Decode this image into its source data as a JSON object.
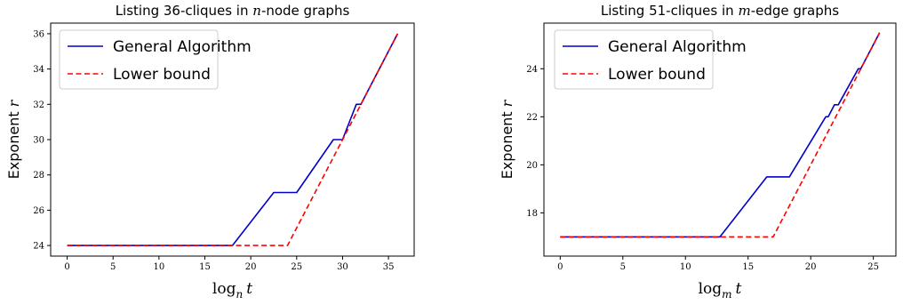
{
  "chart_data": [
    {
      "type": "line",
      "title": {
        "prefix": "Listing 36-cliques in ",
        "math": "n",
        "suffix": "-node graphs"
      },
      "xlabel": {
        "base": "log",
        "sub": "n",
        "var": "t"
      },
      "ylabel": {
        "text": "Exponent ",
        "math": "r"
      },
      "xlim": [
        -1.8,
        37.8
      ],
      "ylim": [
        23.4,
        36.6
      ],
      "xticks": [
        0,
        5,
        10,
        15,
        20,
        25,
        30,
        35
      ],
      "yticks": [
        24,
        26,
        28,
        30,
        32,
        34,
        36
      ],
      "grid": false,
      "legend": "top-left",
      "series": [
        {
          "name": "General Algorithm",
          "color": "#0000cc",
          "dash": "solid",
          "x": [
            0,
            18,
            22.5,
            25,
            29,
            30,
            31.5,
            32,
            36
          ],
          "y": [
            24,
            24,
            27,
            27,
            30,
            30,
            32,
            32,
            36
          ]
        },
        {
          "name": "Lower bound",
          "color": "#ff0000",
          "dash": "dashed",
          "x": [
            0,
            24,
            36
          ],
          "y": [
            24,
            24,
            36
          ]
        }
      ]
    },
    {
      "type": "line",
      "title": {
        "prefix": "Listing 51-cliques in ",
        "math": "m",
        "suffix": "-edge graphs"
      },
      "xlabel": {
        "base": "log",
        "sub": "m",
        "var": "t"
      },
      "ylabel": {
        "text": "Exponent ",
        "math": "r"
      },
      "xlim": [
        -1.3,
        26.8
      ],
      "ylim": [
        16.2,
        25.9
      ],
      "xticks": [
        0,
        5,
        10,
        15,
        20,
        25
      ],
      "yticks": [
        18,
        20,
        22,
        24
      ],
      "grid": false,
      "legend": "top-left",
      "series": [
        {
          "name": "General Algorithm",
          "color": "#0000cc",
          "dash": "solid",
          "x": [
            0,
            12.75,
            16.5,
            18.3,
            21.2,
            21.4,
            21.9,
            22.2,
            23.8,
            24.0,
            25.5
          ],
          "y": [
            17,
            17,
            19.5,
            19.5,
            22,
            22,
            22.5,
            22.5,
            24,
            24,
            25.5
          ]
        },
        {
          "name": "Lower bound",
          "color": "#ff0000",
          "dash": "dashed",
          "x": [
            0,
            17,
            25.5
          ],
          "y": [
            17,
            17,
            25.5
          ]
        }
      ]
    }
  ]
}
